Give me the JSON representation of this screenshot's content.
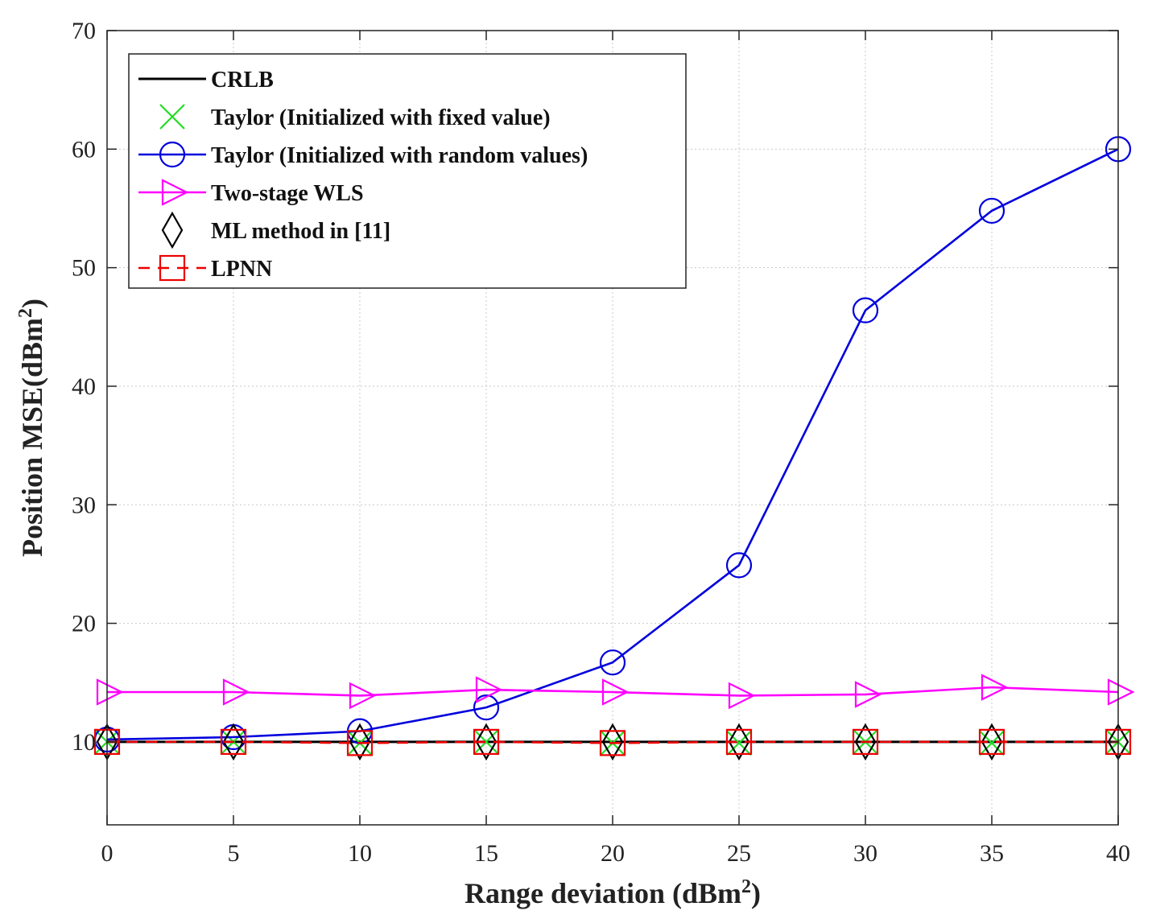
{
  "chart_data": {
    "type": "line",
    "xlabel": "Range deviation (dBm",
    "xlabel_sup": "2",
    "xlabel_suffix": ")",
    "ylabel": "Position MSE(dBm",
    "ylabel_sup": "2",
    "ylabel_suffix": ")",
    "xlim": [
      0,
      40
    ],
    "ylim": [
      3,
      70
    ],
    "xticks": [
      0,
      5,
      10,
      15,
      20,
      25,
      30,
      35,
      40
    ],
    "yticks": [
      10,
      20,
      30,
      40,
      50,
      60,
      70
    ],
    "grid": true,
    "legend_position": "top-left",
    "x": [
      0,
      5,
      10,
      15,
      20,
      25,
      30,
      35,
      40
    ],
    "series": [
      {
        "name": "CRLB",
        "values": [
          10,
          10,
          10,
          10,
          10,
          10,
          10,
          10,
          10
        ],
        "color": "#000000",
        "marker": "none",
        "dash": "solid"
      },
      {
        "name": "Taylor (Initialized with fixed value)",
        "values": [
          10,
          10,
          9.9,
          10,
          9.9,
          9.9,
          10,
          9.9,
          10
        ],
        "color": "#22dd22",
        "marker": "x",
        "dash": "none"
      },
      {
        "name": "Taylor (Initialized with random values)",
        "values": [
          10.2,
          10.4,
          10.9,
          12.9,
          16.7,
          24.9,
          46.4,
          54.8,
          60
        ],
        "color": "#0000dd",
        "marker": "circle",
        "dash": "solid"
      },
      {
        "name": "Two-stage WLS",
        "values": [
          14.2,
          14.2,
          13.9,
          14.4,
          14.2,
          13.9,
          14.0,
          14.6,
          14.2
        ],
        "color": "#ff00ff",
        "marker": "triangle-right",
        "dash": "solid"
      },
      {
        "name": "ML method in [11]",
        "values": [
          10,
          10,
          10,
          10,
          10,
          10,
          10,
          10,
          10
        ],
        "color": "#000000",
        "marker": "diamond",
        "dash": "none"
      },
      {
        "name": "LPNN",
        "values": [
          10,
          10,
          9.9,
          10,
          9.9,
          10,
          10,
          10,
          10
        ],
        "color": "#ee0000",
        "marker": "square",
        "dash": "dashed"
      }
    ]
  }
}
